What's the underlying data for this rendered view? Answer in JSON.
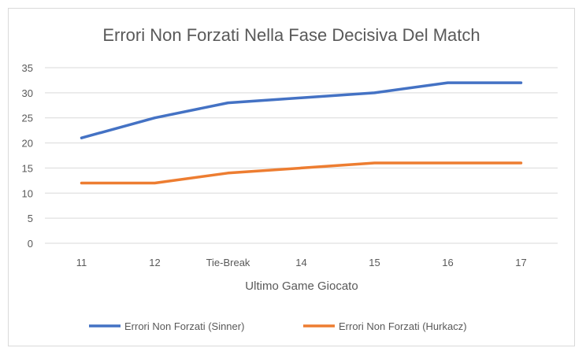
{
  "chart_data": {
    "type": "line",
    "title": "Errori Non Forzati Nella Fase Decisiva Del Match",
    "xlabel": "Ultimo Game Giocato",
    "ylabel": "",
    "categories": [
      "11",
      "12",
      "Tie-Break",
      "14",
      "15",
      "16",
      "17"
    ],
    "ylim": [
      0,
      35
    ],
    "yticks": [
      0,
      5,
      10,
      15,
      20,
      25,
      30,
      35
    ],
    "grid": true,
    "legend": "bottom",
    "series": [
      {
        "name": "Errori Non Forzati (Sinner)",
        "color": "#4472c4",
        "values": [
          21,
          25,
          28,
          29,
          30,
          32,
          32
        ]
      },
      {
        "name": "Errori Non Forzati (Hurkacz)",
        "color": "#ed7d31",
        "values": [
          12,
          12,
          14,
          15,
          16,
          16,
          16
        ]
      }
    ]
  }
}
